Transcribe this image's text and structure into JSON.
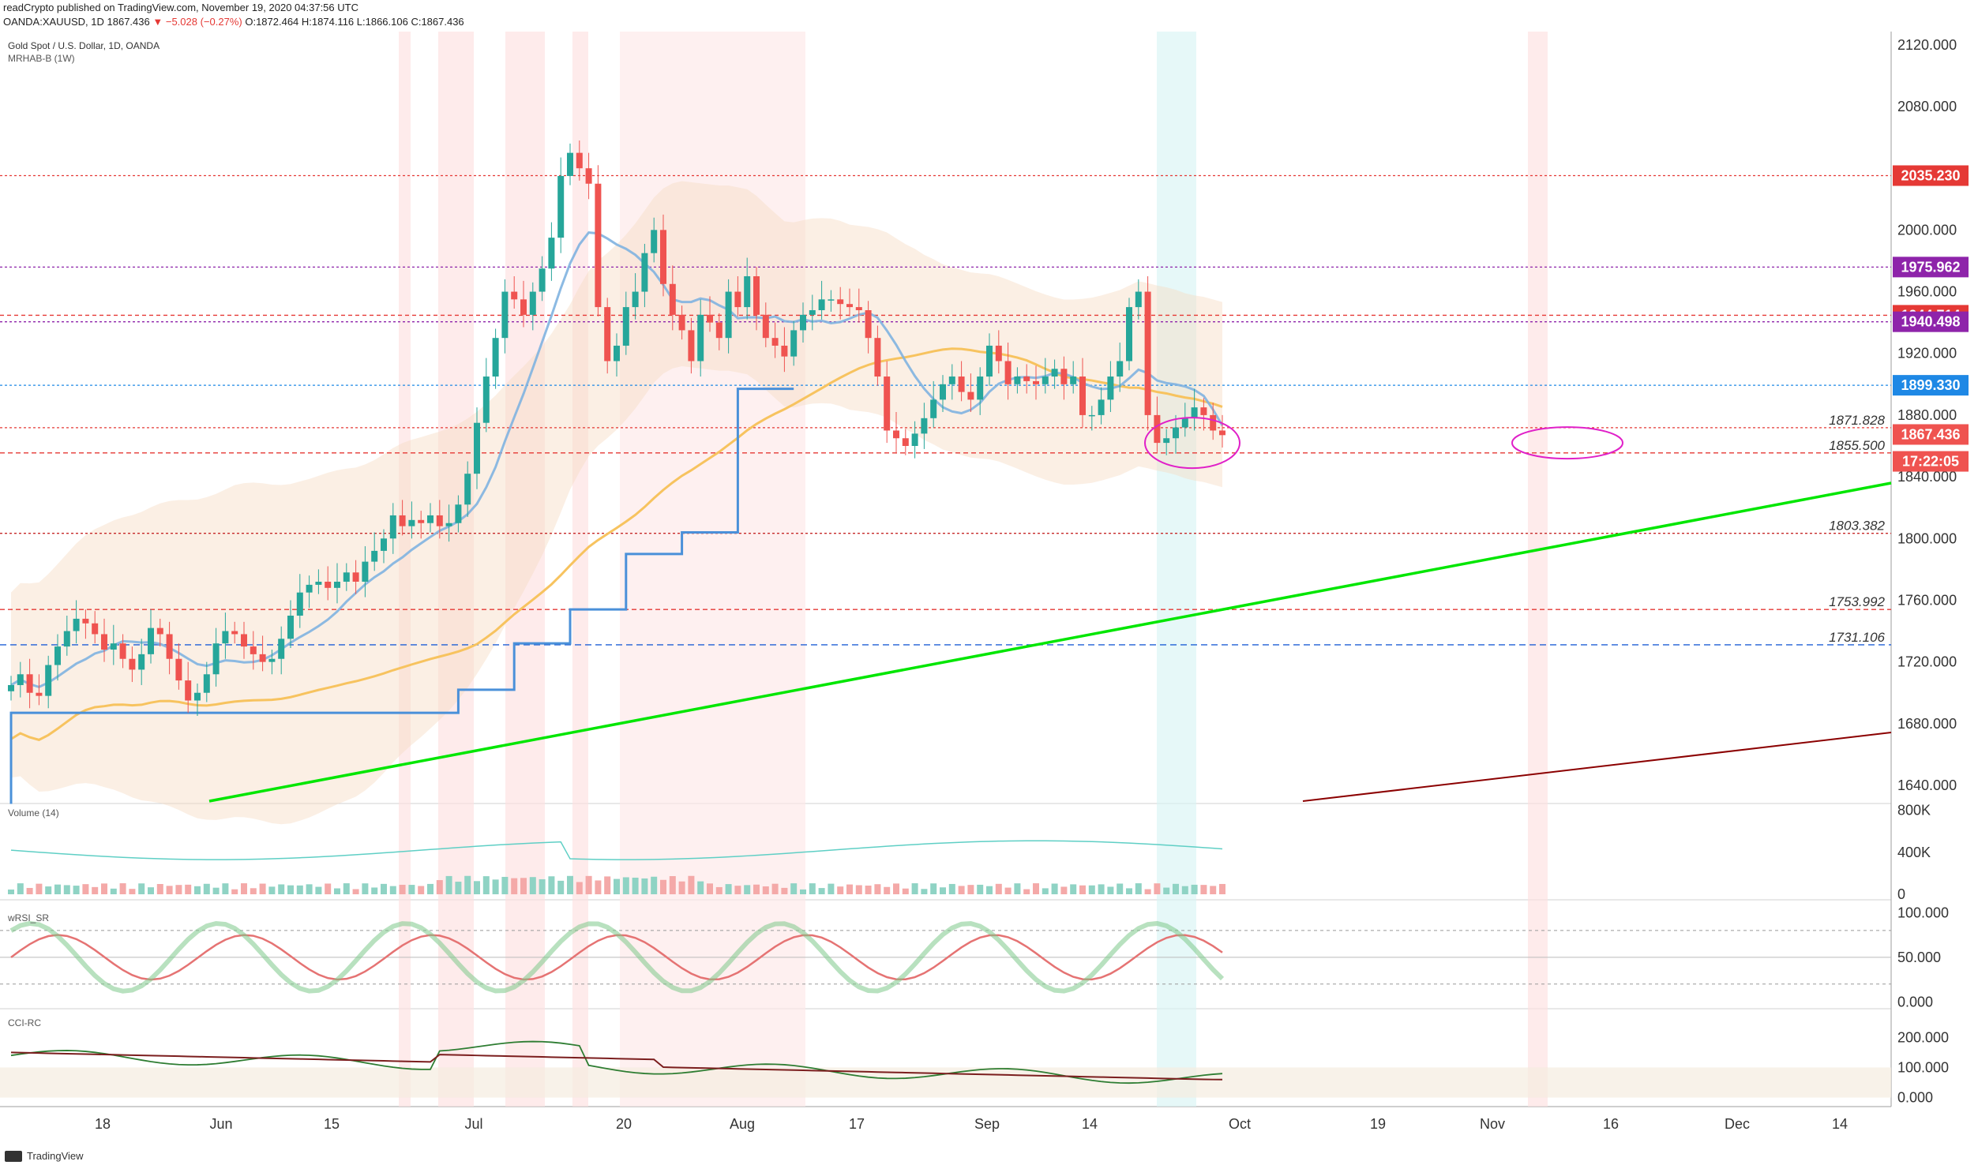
{
  "header": {
    "publish_line": "readCrypto published on TradingView.com, November 19, 2020 04:37:56 UTC",
    "symbol": "OANDA:XAUUSD, 1D",
    "last": "1867.436",
    "change": "−5.028 (−0.27%)",
    "ohlc": "O:1872.464 H:1874.116 L:1866.106 C:1867.436"
  },
  "legend": {
    "title": "Gold Spot / U.S. Dollar, 1D, OANDA",
    "indicator": "MRHAB-B (1W)"
  },
  "panes": {
    "volume": "Volume (14)",
    "wrsi": "wRSI_SR",
    "cci": "CCI-RC"
  },
  "footer": {
    "brand": "TradingView"
  },
  "colors": {
    "up": "#26a69a",
    "down": "#ef5350",
    "green_trend": "#00e600",
    "dark_trend": "#8b0000",
    "ma_yellow": "#f7c35f",
    "step_blue": "#4a90d9",
    "red_level": "#e53935",
    "purple_level": "#8e24aa",
    "blue_level": "#1e88e5"
  },
  "chart_data": [
    {
      "type": "candlestick",
      "name": "price",
      "ylim": [
        1625,
        2130
      ],
      "x_ticks": [
        "18",
        "Jun",
        "15",
        "Jul",
        "20",
        "Aug",
        "17",
        "Sep",
        "14",
        "Oct",
        "19",
        "Nov",
        "16",
        "Dec",
        "14"
      ],
      "y_ticks": [
        "2120.000",
        "2080.000",
        "2000.000",
        "1960.000",
        "1920.000",
        "1880.000",
        "1840.000",
        "1800.000",
        "1760.000",
        "1720.000",
        "1680.000",
        "1640.000"
      ],
      "price_labels": [
        {
          "text": "2035.230",
          "value": 2035.23,
          "color": "#e53935"
        },
        {
          "text": "1975.962",
          "value": 1975.962,
          "color": "#8e24aa"
        },
        {
          "text": "1944.714",
          "value": 1944.714,
          "color": "#e53935"
        },
        {
          "text": "1940.498",
          "value": 1940.498,
          "color": "#8e24aa"
        },
        {
          "text": "1899.330",
          "value": 1899.33,
          "color": "#1e88e5"
        },
        {
          "text": "1867.436",
          "value": 1867.436,
          "color": "#ef5350"
        },
        {
          "text": "17:22:05",
          "value": 1850,
          "color": "#ef5350"
        }
      ],
      "level_labels": [
        {
          "text": "1871.828",
          "value": 1871.828
        },
        {
          "text": "1855.500",
          "value": 1855.5
        },
        {
          "text": "1803.382",
          "value": 1803.382
        },
        {
          "text": "1753.992",
          "value": 1753.992
        },
        {
          "text": "1731.106",
          "value": 1731.106
        }
      ],
      "candles_close": [
        1705,
        1712,
        1700,
        1698,
        1718,
        1730,
        1740,
        1748,
        1745,
        1738,
        1728,
        1732,
        1722,
        1715,
        1725,
        1742,
        1738,
        1722,
        1708,
        1695,
        1700,
        1712,
        1732,
        1740,
        1738,
        1730,
        1725,
        1720,
        1722,
        1735,
        1750,
        1765,
        1770,
        1772,
        1768,
        1772,
        1778,
        1772,
        1785,
        1792,
        1800,
        1815,
        1808,
        1812,
        1810,
        1815,
        1808,
        1810,
        1822,
        1842,
        1875,
        1905,
        1930,
        1960,
        1955,
        1945,
        1960,
        1975,
        1995,
        2035,
        2050,
        2040,
        2030,
        1950,
        1915,
        1925,
        1950,
        1960,
        1985,
        2000,
        1965,
        1945,
        1935,
        1915,
        1945,
        1940,
        1930,
        1960,
        1950,
        1970,
        1945,
        1930,
        1925,
        1918,
        1935,
        1945,
        1948,
        1955,
        1955,
        1952,
        1950,
        1948,
        1930,
        1905,
        1870,
        1865,
        1860,
        1868,
        1878,
        1890,
        1900,
        1905,
        1895,
        1890,
        1905,
        1925,
        1915,
        1900,
        1905,
        1902,
        1900,
        1905,
        1910,
        1900,
        1905,
        1880,
        1880,
        1890,
        1905,
        1915,
        1950,
        1960,
        1880,
        1862,
        1865,
        1872,
        1878,
        1885,
        1880,
        1870,
        1867
      ]
    },
    {
      "type": "bar",
      "name": "volume",
      "ylim": [
        0,
        850000
      ],
      "y_ticks": [
        "800K",
        "400K",
        "0"
      ]
    },
    {
      "type": "line",
      "name": "wRSI_SR",
      "ylim": [
        -5,
        110
      ],
      "y_ticks": [
        "100.000",
        "50.000",
        "0.000"
      ]
    },
    {
      "type": "line",
      "name": "CCI-RC",
      "ylim": [
        -30,
        290
      ],
      "y_ticks": [
        "200.000",
        "100.000",
        "0.000"
      ]
    }
  ]
}
